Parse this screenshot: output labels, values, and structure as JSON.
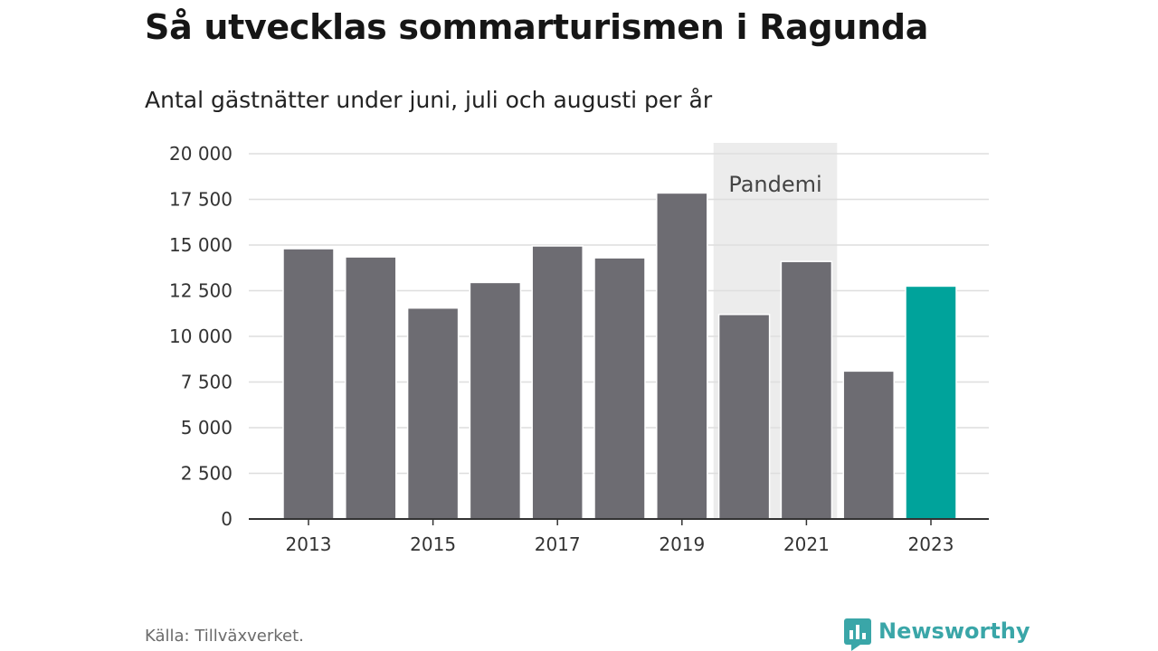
{
  "header": {
    "title": "Så utvecklas sommarturismen i Ragunda",
    "subtitle": "Antal gästnätter under juni, juli och augusti per år"
  },
  "footer": {
    "source": "Källa: Tillväxverket.",
    "brand": "Newsworthy"
  },
  "chart_data": {
    "type": "bar",
    "title": "Så utvecklas sommarturismen i Ragunda",
    "subtitle": "Antal gästnätter under juni, juli och augusti per år",
    "xlabel": "",
    "ylabel": "",
    "categories": [
      "2013",
      "2014",
      "2015",
      "2016",
      "2017",
      "2018",
      "2019",
      "2020",
      "2021",
      "2022",
      "2023"
    ],
    "x_tick_labels": [
      "2013",
      "2015",
      "2017",
      "2019",
      "2021",
      "2023"
    ],
    "values": [
      14800,
      14350,
      11550,
      12950,
      14950,
      14300,
      17850,
      11200,
      14100,
      8100,
      12750
    ],
    "ylim": [
      0,
      20000
    ],
    "y_ticks": [
      0,
      2500,
      5000,
      7500,
      10000,
      12500,
      15000,
      17500,
      20000
    ],
    "y_tick_labels": [
      "0",
      "2 500",
      "5 000",
      "7 500",
      "10 000",
      "12 500",
      "15 000",
      "17 500",
      "20 000"
    ],
    "grid": true,
    "highlight_category": "2023",
    "annotations": [
      {
        "label": "Pandemi",
        "from": "2020",
        "to": "2021",
        "type": "shaded-band"
      }
    ],
    "colors": {
      "bar": "#6d6c72",
      "highlight": "#00a39b",
      "band": "#ececec",
      "grid": "#dedede",
      "axis": "#333333"
    }
  }
}
